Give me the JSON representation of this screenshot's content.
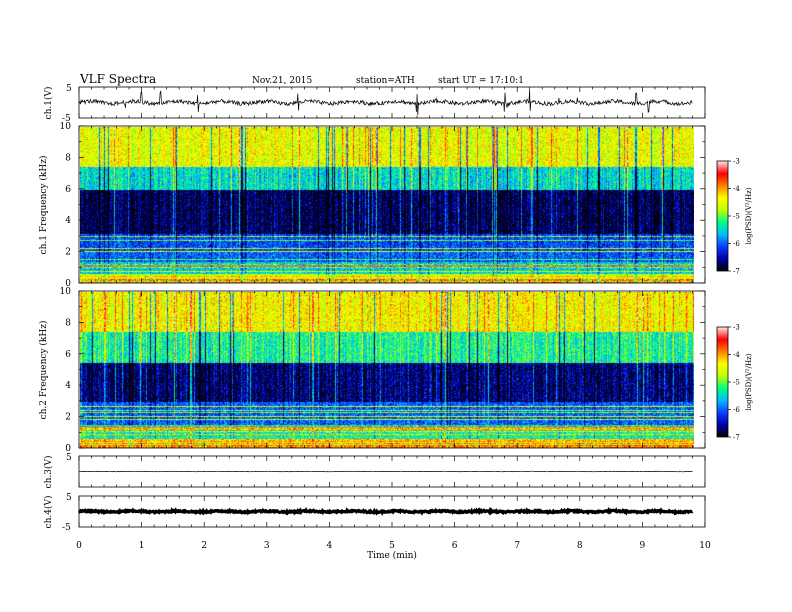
{
  "header": {
    "title": "VLF Spectra",
    "date": "Nov.21, 2015",
    "station": "station=ATH",
    "start": "start UT =  17:10:1"
  },
  "colors": {
    "colormap": [
      "#000000",
      "#0000b0",
      "#1040ff",
      "#00c0ff",
      "#00ff80",
      "#c0ff00",
      "#ffff00",
      "#ff8000",
      "#ff0000",
      "#ffe0e0"
    ]
  },
  "chart_data": [
    {
      "type": "line",
      "panel": "ch1-waveform",
      "ylabel": "ch.1(V)",
      "ylim": [
        -5,
        5
      ],
      "yticks": [
        "5",
        "-5"
      ],
      "xlim": [
        0,
        10
      ],
      "baseline": 0,
      "spike_times_min": [
        1.0,
        1.3,
        1.9,
        3.5,
        5.4,
        6.8,
        7.2,
        8.9,
        9.1
      ]
    },
    {
      "type": "heatmap",
      "panel": "ch1-spectrogram",
      "ylabel": "ch.1\nFrequency (kHz)",
      "ylim": [
        0,
        10
      ],
      "yticks": [
        "0",
        "2",
        "4",
        "6",
        "8",
        "10"
      ],
      "xlim": [
        0,
        10
      ],
      "data_end_min": 9.8,
      "levels": [
        {
          "f": [
            0,
            1.4
          ],
          "level": -5.5
        },
        {
          "f": [
            1.4,
            2.0
          ],
          "level": -6.0
        },
        {
          "f": [
            2.0,
            3.2
          ],
          "level": -6.1
        },
        {
          "f": [
            3.2,
            6.0
          ],
          "level": -6.7
        },
        {
          "f": [
            6.0,
            7.5
          ],
          "level": -5.4
        },
        {
          "f": [
            7.5,
            10
          ],
          "level": -4.4
        }
      ],
      "colorbar": {
        "label": "log(PSD)(V²/Hz)",
        "range": [
          -7,
          -3
        ],
        "ticks": [
          "-3",
          "-4",
          "-5",
          "-6",
          "-7"
        ]
      }
    },
    {
      "type": "heatmap",
      "panel": "ch2-spectrogram",
      "ylabel": "ch.2\nFrequency (kHz)",
      "ylim": [
        0,
        10
      ],
      "yticks": [
        "0",
        "2",
        "4",
        "6",
        "8",
        "10"
      ],
      "xlim": [
        0,
        10
      ],
      "data_end_min": 9.8,
      "levels": [
        {
          "f": [
            0,
            1.5
          ],
          "level": -5.3
        },
        {
          "f": [
            1.5,
            3.0
          ],
          "level": -6.0
        },
        {
          "f": [
            3.0,
            5.5
          ],
          "level": -6.6
        },
        {
          "f": [
            5.5,
            7.5
          ],
          "level": -5.2
        },
        {
          "f": [
            7.5,
            10
          ],
          "level": -4.3
        }
      ],
      "colorbar": {
        "label": "log(PSD)(V²/Hz)",
        "range": [
          -7,
          -3
        ],
        "ticks": [
          "-3",
          "-4",
          "-5",
          "-6",
          "-7"
        ]
      }
    },
    {
      "type": "line",
      "panel": "ch3-waveform",
      "ylabel": "ch.3(V)",
      "ylim": [
        -5,
        5
      ],
      "yticks": [
        "5"
      ],
      "xlim": [
        0,
        10
      ],
      "baseline": 0
    },
    {
      "type": "line",
      "panel": "ch4-waveform",
      "ylabel": "ch.4(V)",
      "ylim": [
        -5,
        5
      ],
      "yticks": [
        "5",
        "-5"
      ],
      "xlim": [
        0,
        10
      ],
      "baseline": 0
    }
  ],
  "xaxis": {
    "label": "Time  (min)",
    "ticks": [
      "0",
      "1",
      "2",
      "3",
      "4",
      "5",
      "6",
      "7",
      "8",
      "9",
      "10"
    ],
    "range": [
      0,
      10
    ]
  }
}
